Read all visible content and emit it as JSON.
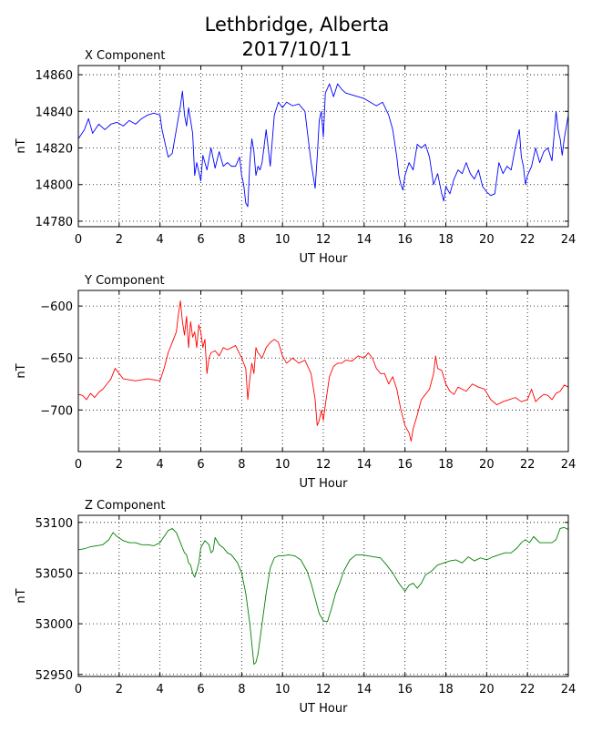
{
  "title_line1": "Lethbridge, Alberta",
  "title_line2": "2017/10/11",
  "chart_data": [
    {
      "type": "line",
      "title": "X Component",
      "xlabel": "UT Hour",
      "ylabel": "nT",
      "xlim": [
        0,
        24
      ],
      "ylim": [
        14777,
        14865
      ],
      "xticks": [
        0,
        2,
        4,
        6,
        8,
        10,
        12,
        14,
        16,
        18,
        20,
        22,
        24
      ],
      "yticks": [
        14780,
        14800,
        14820,
        14840,
        14860
      ],
      "grid": true,
      "color": "#0000ff",
      "series": [
        {
          "x": [
            0,
            0.3,
            0.5,
            0.7,
            1.0,
            1.3,
            1.6,
            1.9,
            2.2,
            2.5,
            2.8,
            3.1,
            3.4,
            3.7,
            4.0,
            4.1,
            4.2,
            4.4,
            4.6,
            4.8,
            5.0,
            5.1,
            5.2,
            5.3,
            5.4,
            5.5,
            5.6,
            5.7,
            5.8,
            6.0,
            6.1,
            6.3,
            6.5,
            6.7,
            6.9,
            7.1,
            7.3,
            7.5,
            7.7,
            7.9,
            8.0,
            8.1,
            8.2,
            8.3,
            8.4,
            8.5,
            8.6,
            8.7,
            8.8,
            8.9,
            9.0,
            9.2,
            9.4,
            9.6,
            9.8,
            10.0,
            10.2,
            10.5,
            10.8,
            11.1,
            11.4,
            11.6,
            11.7,
            11.8,
            11.9,
            12.0,
            12.1,
            12.3,
            12.5,
            12.7,
            12.9,
            13.1,
            13.4,
            13.7,
            14.0,
            14.3,
            14.6,
            14.9,
            15.2,
            15.4,
            15.6,
            15.7,
            15.8,
            15.9,
            16.0,
            16.2,
            16.4,
            16.6,
            16.8,
            17.0,
            17.2,
            17.4,
            17.6,
            17.8,
            17.9,
            18.0,
            18.2,
            18.4,
            18.6,
            18.8,
            19.0,
            19.2,
            19.4,
            19.6,
            19.8,
            20.0,
            20.2,
            20.4,
            20.6,
            20.8,
            21.0,
            21.2,
            21.4,
            21.6,
            21.7,
            21.8,
            21.9,
            22.0,
            22.2,
            22.4,
            22.6,
            22.8,
            23.0,
            23.2,
            23.4,
            23.5,
            23.6,
            23.7,
            23.8,
            24.0
          ],
          "y": [
            14825,
            14830,
            14836,
            14828,
            14833,
            14830,
            14833,
            14834,
            14832,
            14835,
            14833,
            14836,
            14838,
            14839,
            14838,
            14830,
            14825,
            14815,
            14817,
            14830,
            14843,
            14851,
            14838,
            14832,
            14842,
            14835,
            14828,
            14805,
            14812,
            14802,
            14816,
            14808,
            14820,
            14809,
            14818,
            14810,
            14812,
            14810,
            14810,
            14815,
            14805,
            14800,
            14790,
            14788,
            14812,
            14825,
            14818,
            14805,
            14810,
            14808,
            14812,
            14830,
            14810,
            14838,
            14845,
            14842,
            14845,
            14843,
            14844,
            14840,
            14812,
            14798,
            14815,
            14835,
            14840,
            14826,
            14850,
            14855,
            14848,
            14855,
            14852,
            14850,
            14849,
            14848,
            14847,
            14845,
            14843,
            14845,
            14838,
            14830,
            14815,
            14805,
            14800,
            14797,
            14805,
            14812,
            14808,
            14822,
            14820,
            14822,
            14815,
            14800,
            14806,
            14795,
            14791,
            14799,
            14795,
            14803,
            14808,
            14806,
            14812,
            14806,
            14803,
            14808,
            14799,
            14796,
            14794,
            14795,
            14812,
            14806,
            14810,
            14808,
            14820,
            14830,
            14815,
            14810,
            14800,
            14805,
            14810,
            14820,
            14812,
            14818,
            14820,
            14813,
            14840,
            14830,
            14825,
            14816,
            14825,
            14838
          ]
        }
      ]
    },
    {
      "type": "line",
      "title": "Y Component",
      "xlabel": "UT Hour",
      "ylabel": "nT",
      "xlim": [
        0,
        24
      ],
      "ylim": [
        -740,
        -585
      ],
      "xticks": [
        0,
        2,
        4,
        6,
        8,
        10,
        12,
        14,
        16,
        18,
        20,
        22,
        24
      ],
      "yticks": [
        -600,
        -650,
        -700
      ],
      "grid": true,
      "color": "#ff0000",
      "series": [
        {
          "x": [
            0,
            0.2,
            0.4,
            0.6,
            0.8,
            1.0,
            1.2,
            1.4,
            1.6,
            1.8,
            2.0,
            2.2,
            2.5,
            2.8,
            3.1,
            3.4,
            3.7,
            4.0,
            4.2,
            4.4,
            4.6,
            4.8,
            4.9,
            5.0,
            5.1,
            5.2,
            5.3,
            5.4,
            5.5,
            5.6,
            5.7,
            5.8,
            5.9,
            6.0,
            6.1,
            6.2,
            6.3,
            6.4,
            6.5,
            6.7,
            6.9,
            7.1,
            7.3,
            7.5,
            7.7,
            8.0,
            8.2,
            8.3,
            8.4,
            8.5,
            8.6,
            8.7,
            8.8,
            9.0,
            9.2,
            9.4,
            9.6,
            9.8,
            10.0,
            10.2,
            10.5,
            10.8,
            11.1,
            11.4,
            11.6,
            11.7,
            11.8,
            11.9,
            12.0,
            12.1,
            12.3,
            12.5,
            12.7,
            12.9,
            13.1,
            13.4,
            13.7,
            14.0,
            14.2,
            14.4,
            14.6,
            14.8,
            15.0,
            15.2,
            15.4,
            15.6,
            15.8,
            16.0,
            16.2,
            16.3,
            16.4,
            16.6,
            16.8,
            17.0,
            17.2,
            17.4,
            17.5,
            17.6,
            17.8,
            18.0,
            18.2,
            18.4,
            18.6,
            18.8,
            19.0,
            19.3,
            19.6,
            19.9,
            20.2,
            20.5,
            20.8,
            21.1,
            21.4,
            21.7,
            22.0,
            22.2,
            22.4,
            22.6,
            22.8,
            23.0,
            23.2,
            23.4,
            23.6,
            23.8,
            24.0
          ],
          "y": [
            -685,
            -686,
            -690,
            -684,
            -688,
            -683,
            -680,
            -675,
            -670,
            -660,
            -665,
            -670,
            -671,
            -672,
            -671,
            -670,
            -671,
            -672,
            -660,
            -645,
            -635,
            -625,
            -608,
            -595,
            -615,
            -628,
            -610,
            -640,
            -615,
            -630,
            -625,
            -640,
            -618,
            -625,
            -640,
            -632,
            -665,
            -650,
            -645,
            -643,
            -648,
            -640,
            -642,
            -640,
            -638,
            -650,
            -660,
            -690,
            -670,
            -655,
            -665,
            -640,
            -645,
            -650,
            -640,
            -635,
            -632,
            -635,
            -648,
            -655,
            -650,
            -655,
            -652,
            -665,
            -690,
            -715,
            -710,
            -700,
            -710,
            -695,
            -668,
            -658,
            -655,
            -655,
            -652,
            -653,
            -648,
            -650,
            -645,
            -650,
            -660,
            -665,
            -665,
            -675,
            -668,
            -680,
            -700,
            -715,
            -722,
            -730,
            -718,
            -705,
            -690,
            -685,
            -680,
            -665,
            -648,
            -660,
            -662,
            -675,
            -682,
            -685,
            -678,
            -680,
            -682,
            -675,
            -678,
            -680,
            -690,
            -695,
            -692,
            -690,
            -688,
            -692,
            -690,
            -680,
            -692,
            -688,
            -685,
            -686,
            -690,
            -684,
            -682,
            -676,
            -678
          ]
        }
      ]
    },
    {
      "type": "line",
      "title": "Z Component",
      "xlabel": "UT Hour",
      "ylabel": "nT",
      "xlim": [
        0,
        24
      ],
      "ylim": [
        52948,
        53107
      ],
      "xticks": [
        0,
        2,
        4,
        6,
        8,
        10,
        12,
        14,
        16,
        18,
        20,
        22,
        24
      ],
      "yticks": [
        52950,
        53000,
        53050,
        53100
      ],
      "grid": true,
      "color": "#008000",
      "series": [
        {
          "x": [
            0,
            0.3,
            0.6,
            0.9,
            1.2,
            1.5,
            1.7,
            1.9,
            2.2,
            2.5,
            2.8,
            3.1,
            3.4,
            3.7,
            4.0,
            4.2,
            4.4,
            4.6,
            4.8,
            5.0,
            5.1,
            5.2,
            5.3,
            5.4,
            5.5,
            5.6,
            5.7,
            5.8,
            5.9,
            6.0,
            6.2,
            6.4,
            6.5,
            6.6,
            6.7,
            6.9,
            7.1,
            7.3,
            7.5,
            7.8,
            8.0,
            8.2,
            8.4,
            8.5,
            8.6,
            8.7,
            8.8,
            9.0,
            9.2,
            9.4,
            9.6,
            9.8,
            10.0,
            10.3,
            10.6,
            10.9,
            11.2,
            11.4,
            11.6,
            11.8,
            12.0,
            12.2,
            12.4,
            12.6,
            12.8,
            13.0,
            13.3,
            13.6,
            13.9,
            14.2,
            14.5,
            14.8,
            15.1,
            15.4,
            15.7,
            16.0,
            16.2,
            16.4,
            16.6,
            16.8,
            17.0,
            17.3,
            17.6,
            17.9,
            18.2,
            18.5,
            18.8,
            19.1,
            19.4,
            19.7,
            20.0,
            20.3,
            20.6,
            20.9,
            21.2,
            21.5,
            21.7,
            21.9,
            22.1,
            22.3,
            22.6,
            22.9,
            23.2,
            23.4,
            23.6,
            23.8,
            24.0
          ],
          "y": [
            53073,
            53074,
            53076,
            53077,
            53078,
            53083,
            53090,
            53086,
            53082,
            53080,
            53080,
            53078,
            53078,
            53077,
            53080,
            53086,
            53092,
            53094,
            53090,
            53080,
            53075,
            53070,
            53068,
            53060,
            53058,
            53050,
            53046,
            53052,
            53060,
            53075,
            53082,
            53078,
            53070,
            53072,
            53085,
            53078,
            53075,
            53070,
            53068,
            53060,
            53050,
            53030,
            53000,
            52980,
            52960,
            52962,
            52970,
            53000,
            53030,
            53055,
            53065,
            53067,
            53067,
            53068,
            53067,
            53063,
            53052,
            53040,
            53025,
            53010,
            53003,
            53002,
            53015,
            53030,
            53040,
            53052,
            53063,
            53068,
            53068,
            53067,
            53066,
            53065,
            53058,
            53050,
            53040,
            53032,
            53038,
            53040,
            53035,
            53040,
            53048,
            53052,
            53058,
            53060,
            53062,
            53063,
            53060,
            53066,
            53062,
            53065,
            53063,
            53066,
            53068,
            53070,
            53070,
            53075,
            53080,
            53083,
            53080,
            53086,
            53080,
            53080,
            53080,
            53083,
            53094,
            53095,
            53093
          ]
        }
      ]
    }
  ]
}
